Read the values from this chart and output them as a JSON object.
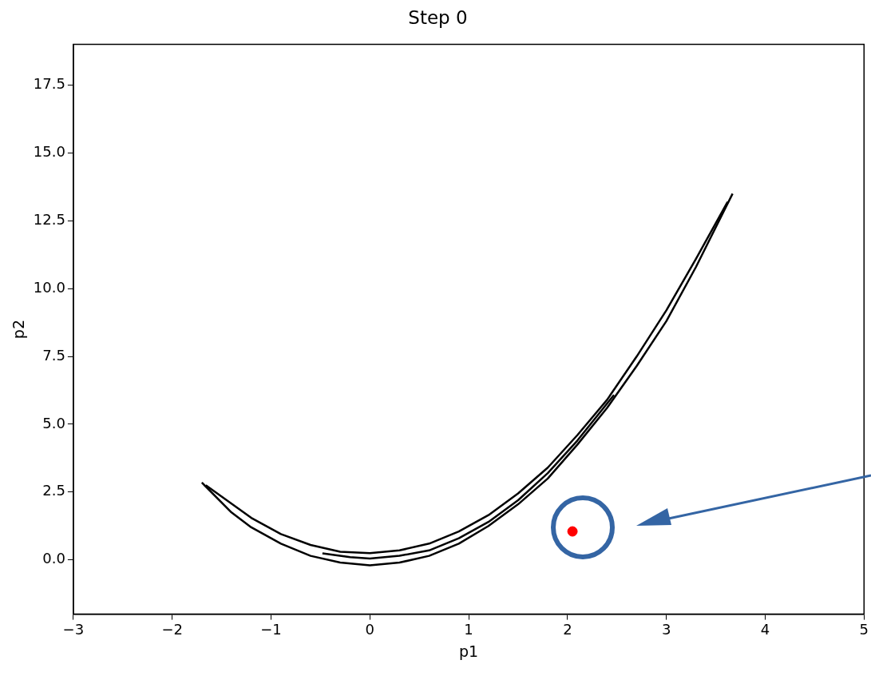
{
  "chart_data": {
    "type": "line",
    "title": "Step 0",
    "xlabel": "p1",
    "ylabel": "p2",
    "xlim": [
      -3,
      5
    ],
    "xticks": [
      {
        "value": -3,
        "label": "−3"
      },
      {
        "value": -2,
        "label": "−2"
      },
      {
        "value": -1,
        "label": "−1"
      },
      0,
      1,
      2,
      3,
      4,
      5
    ],
    "ylim": [
      -2,
      19
    ],
    "yticks": [
      {
        "value": 0,
        "label": "0.0"
      },
      {
        "value": 2.5,
        "label": "2.5"
      },
      {
        "value": 5,
        "label": "5.0"
      },
      {
        "value": 7.5,
        "label": "7.5"
      },
      {
        "value": 10,
        "label": "10.0"
      },
      {
        "value": 12.5,
        "label": "12.5"
      },
      {
        "value": 15,
        "label": "15.0"
      },
      {
        "value": 17.5,
        "label": "17.5"
      }
    ],
    "series": [
      {
        "type": "line",
        "color": "#000000",
        "x": [
          -1.7,
          -1.4,
          -1.2,
          -0.9,
          -0.6,
          -0.3,
          0,
          0.3,
          0.6,
          0.9,
          1.2,
          1.5,
          1.8,
          2.1,
          2.4,
          2.7,
          3.0,
          3.3,
          3.67
        ],
        "values": [
          2.85,
          1.75,
          1.2,
          0.6,
          0.15,
          -0.1,
          -0.2,
          -0.1,
          0.15,
          0.6,
          1.25,
          2.05,
          3.0,
          4.25,
          5.6,
          7.15,
          8.8,
          10.8,
          13.5
        ]
      },
      {
        "type": "line",
        "color": "#000000",
        "x": [
          -1.66,
          -1.2,
          -0.9,
          -0.6,
          -0.3,
          0,
          0.3,
          0.6,
          0.9,
          1.2,
          1.5,
          1.8,
          2.1,
          2.4,
          2.7,
          3.0,
          3.3,
          3.62
        ],
        "values": [
          2.75,
          1.55,
          0.95,
          0.55,
          0.3,
          0.25,
          0.35,
          0.6,
          1.05,
          1.65,
          2.45,
          3.4,
          4.6,
          5.9,
          7.5,
          9.2,
          11.1,
          13.2
        ]
      },
      {
        "type": "line",
        "color": "#000000",
        "x": [
          -0.48,
          -0.2,
          0,
          0.3,
          0.6,
          0.9,
          1.2,
          1.5,
          1.8,
          2.1,
          2.47
        ],
        "values": [
          0.24,
          0.1,
          0.05,
          0.15,
          0.35,
          0.8,
          1.4,
          2.2,
          3.2,
          4.4,
          6.08
        ]
      },
      {
        "type": "scatter",
        "color": "#ff0000",
        "marker": "circle",
        "x": [
          2.05
        ],
        "values": [
          1.05
        ]
      }
    ]
  }
}
